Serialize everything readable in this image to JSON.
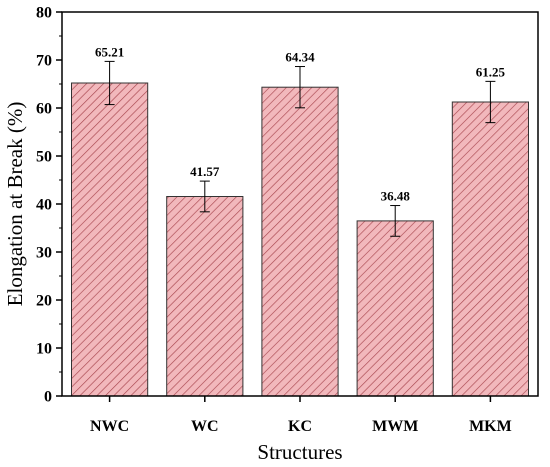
{
  "chart_data": {
    "type": "bar",
    "xlabel": "Structures",
    "ylabel": "Elongation at Break (%)",
    "ylim": [
      0,
      80
    ],
    "yticks": [
      0,
      10,
      20,
      30,
      40,
      50,
      60,
      70,
      80
    ],
    "categories": [
      "NWC",
      "WC",
      "KC",
      "MWM",
      "MKM"
    ],
    "values": [
      65.21,
      41.57,
      64.34,
      36.48,
      61.25
    ],
    "data_labels": [
      "65.21",
      "41.57",
      "64.34",
      "36.48",
      "61.25"
    ],
    "errors": [
      4.5,
      3.2,
      4.3,
      3.2,
      4.3
    ],
    "bar_fill_color": "#f2b8bc",
    "bar_hatch_color": "#a8464f",
    "bar_edge_color": "#333333",
    "grid": false
  }
}
